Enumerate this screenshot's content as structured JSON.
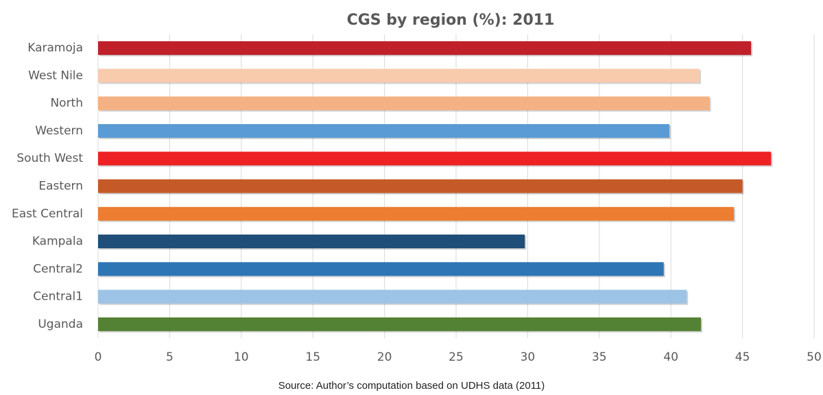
{
  "chart_data": {
    "type": "bar",
    "orientation": "horizontal",
    "title": "CGS by region (%): 2011",
    "note": "Source: Author’s computation based on UDHS data (2011)",
    "categories": [
      "Karamoja",
      "West Nile",
      "North",
      "Western",
      "South West",
      "Eastern",
      "East Central",
      "Kampala",
      "Central2",
      "Central1",
      "Uganda"
    ],
    "values": [
      45.6,
      42.0,
      42.7,
      39.9,
      47.0,
      45.0,
      44.4,
      29.8,
      39.5,
      41.1,
      42.1
    ],
    "colors": [
      "#c0202a",
      "#f8cbad",
      "#f4b183",
      "#5b9bd5",
      "#ee2224",
      "#c55a28",
      "#ed7d31",
      "#1f4e79",
      "#2e75b6",
      "#9dc3e6",
      "#548235"
    ],
    "xlim": [
      0,
      50
    ],
    "xticks": [
      0,
      5,
      10,
      15,
      20,
      25,
      30,
      35,
      40,
      45,
      50
    ],
    "grid": true
  }
}
